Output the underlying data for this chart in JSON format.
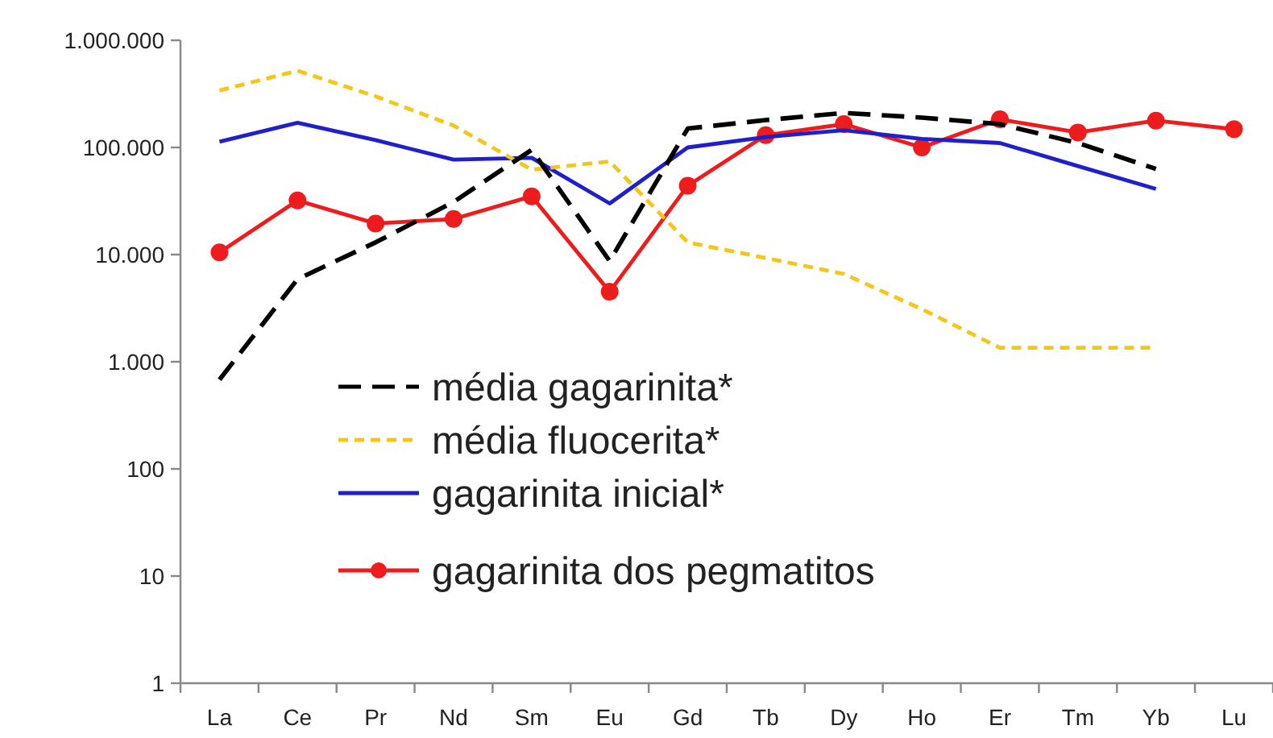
{
  "chart_data": {
    "type": "line",
    "categories": [
      "La",
      "Ce",
      "Pr",
      "Nd",
      "Sm",
      "Eu",
      "Gd",
      "Tb",
      "Dy",
      "Ho",
      "Er",
      "Tm",
      "Yb",
      "Lu"
    ],
    "log": "y",
    "ylim": [
      1,
      1000000
    ],
    "yticks": [
      1,
      10,
      100,
      {
        "value": 1000,
        "label": "1.000"
      },
      {
        "value": 10000,
        "label": "10.000"
      },
      {
        "value": 100000,
        "label": "100.000"
      },
      {
        "value": 1000000,
        "label": "1.000.000"
      }
    ],
    "grid": false,
    "legend": "bottom left",
    "series": [
      {
        "name": "média gagarinita*",
        "color": "#000000",
        "line_style": "dashed",
        "marker": "none",
        "values": [
          680,
          5900,
          13000,
          31000,
          95000,
          8700,
          150000,
          180000,
          210000,
          190000,
          165000,
          110000,
          63000,
          null
        ]
      },
      {
        "name": "média fluocerita*",
        "color": "#f5c518",
        "line_style": "dotted",
        "marker": "none",
        "values": [
          340000,
          520000,
          300000,
          160000,
          62000,
          74000,
          13000,
          9300,
          6600,
          3100,
          1350,
          1350,
          1350,
          null
        ]
      },
      {
        "name": "gagarinita inicial*",
        "color": "#1f1fcc",
        "line_style": "solid",
        "marker": "none",
        "values": [
          113000,
          170000,
          117000,
          77000,
          80000,
          30000,
          100000,
          125000,
          145000,
          120000,
          110000,
          67000,
          41000,
          null
        ]
      },
      {
        "name": "gagarinita dos pegmatitos",
        "color": "#ee1c1c",
        "line_style": "solid",
        "marker": "circle",
        "values": [
          10500,
          32000,
          19500,
          21500,
          35000,
          4500,
          44000,
          130000,
          165000,
          100000,
          183000,
          138000,
          178000,
          148000
        ]
      }
    ]
  }
}
